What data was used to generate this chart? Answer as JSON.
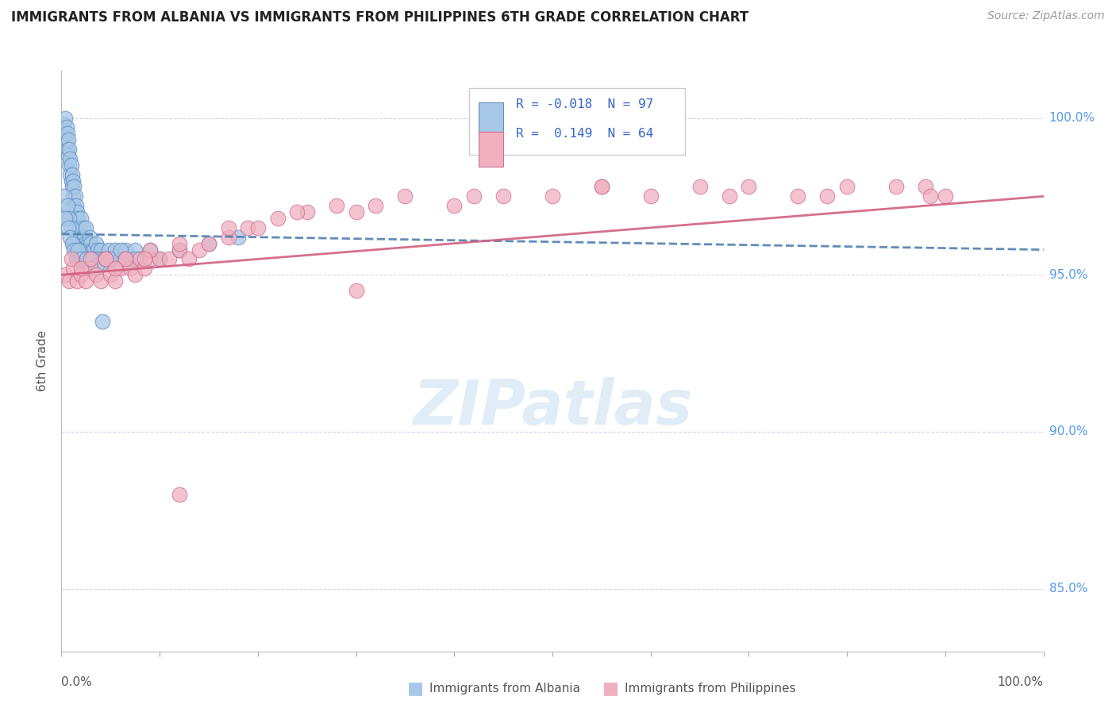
{
  "title": "IMMIGRANTS FROM ALBANIA VS IMMIGRANTS FROM PHILIPPINES 6TH GRADE CORRELATION CHART",
  "source": "Source: ZipAtlas.com",
  "ylabel": "6th Grade",
  "xlim": [
    0.0,
    100.0
  ],
  "ylim": [
    83.0,
    101.5
  ],
  "yticks_right": [
    85.0,
    90.0,
    95.0,
    100.0
  ],
  "albania_color": "#a8c8e8",
  "albania_edge": "#6090c0",
  "albania_line_color": "#5080b0",
  "philippines_color": "#f0b0c0",
  "philippines_edge": "#d07090",
  "philippines_line_color": "#d06080",
  "albania_R": -0.018,
  "albania_N": 97,
  "philippines_R": 0.149,
  "philippines_N": 64,
  "legend_R_color": "#3366cc",
  "background_color": "#ffffff",
  "grid_color": "#ddd0e8",
  "watermark_color": "#cce0f0",
  "albania_x": [
    0.2,
    0.3,
    0.4,
    0.5,
    0.5,
    0.6,
    0.6,
    0.7,
    0.7,
    0.8,
    0.8,
    0.9,
    0.9,
    1.0,
    1.0,
    1.1,
    1.1,
    1.2,
    1.2,
    1.3,
    1.3,
    1.4,
    1.4,
    1.5,
    1.5,
    1.6,
    1.7,
    1.8,
    1.9,
    2.0,
    2.0,
    2.1,
    2.2,
    2.3,
    2.4,
    2.5,
    2.6,
    2.7,
    2.8,
    2.9,
    3.0,
    3.1,
    3.2,
    3.3,
    3.4,
    3.5,
    3.7,
    3.9,
    4.0,
    4.2,
    4.5,
    4.8,
    5.0,
    5.5,
    6.0,
    6.5,
    7.0,
    7.5,
    8.0,
    9.0,
    10.0,
    12.0,
    15.0,
    18.0,
    0.3,
    0.5,
    0.6,
    0.8,
    1.0,
    1.2,
    1.4,
    1.6,
    1.8,
    2.0,
    2.2,
    2.5,
    2.8,
    3.0,
    3.5,
    4.0,
    4.5,
    5.0,
    6.0,
    7.5,
    0.4,
    0.7,
    0.9,
    1.1,
    1.3,
    1.5,
    1.7,
    2.0,
    2.3,
    2.6,
    3.1,
    3.6,
    4.2
  ],
  "albania_y": [
    99.8,
    99.5,
    100.0,
    99.7,
    99.2,
    99.0,
    99.5,
    98.8,
    99.3,
    98.5,
    99.0,
    98.2,
    98.7,
    98.0,
    98.5,
    97.8,
    98.2,
    97.5,
    98.0,
    97.2,
    97.8,
    97.0,
    97.5,
    96.8,
    97.2,
    97.0,
    96.8,
    96.5,
    96.5,
    96.3,
    96.8,
    96.0,
    96.5,
    96.2,
    96.0,
    96.5,
    95.8,
    96.0,
    95.8,
    96.2,
    96.0,
    95.8,
    95.5,
    95.8,
    95.5,
    96.0,
    95.8,
    95.5,
    95.8,
    95.5,
    95.5,
    95.8,
    95.5,
    95.8,
    95.5,
    95.8,
    95.5,
    95.8,
    95.5,
    95.8,
    95.5,
    95.8,
    96.0,
    96.2,
    97.5,
    97.0,
    97.2,
    96.8,
    96.5,
    96.0,
    95.8,
    95.5,
    95.8,
    95.5,
    95.3,
    95.5,
    95.2,
    95.5,
    95.5,
    95.3,
    95.5,
    95.5,
    95.8,
    95.5,
    96.8,
    96.5,
    96.2,
    96.0,
    95.8,
    95.5,
    95.8,
    95.5,
    95.3,
    95.5,
    95.5,
    95.3,
    93.5
  ],
  "philippines_x": [
    0.4,
    0.8,
    1.2,
    1.6,
    2.0,
    2.5,
    3.0,
    3.5,
    4.0,
    4.5,
    5.0,
    5.5,
    6.0,
    6.5,
    7.0,
    7.5,
    8.0,
    8.5,
    9.0,
    10.0,
    11.0,
    12.0,
    13.0,
    14.0,
    15.0,
    17.0,
    19.0,
    22.0,
    25.0,
    28.0,
    30.0,
    35.0,
    40.0,
    45.0,
    50.0,
    55.0,
    60.0,
    65.0,
    70.0,
    75.0,
    80.0,
    85.0,
    90.0,
    1.0,
    2.0,
    3.0,
    4.5,
    6.5,
    9.0,
    12.0,
    17.0,
    24.0,
    32.0,
    42.0,
    55.0,
    68.0,
    78.0,
    88.0,
    30.0,
    5.5,
    8.5,
    20.0,
    12.0,
    88.5
  ],
  "philippines_y": [
    95.0,
    94.8,
    95.2,
    94.8,
    95.0,
    94.8,
    95.2,
    95.0,
    94.8,
    95.5,
    95.0,
    94.8,
    95.2,
    95.5,
    95.2,
    95.0,
    95.5,
    95.2,
    95.5,
    95.5,
    95.5,
    95.8,
    95.5,
    95.8,
    96.0,
    96.2,
    96.5,
    96.8,
    97.0,
    97.2,
    97.0,
    97.5,
    97.2,
    97.5,
    97.5,
    97.8,
    97.5,
    97.8,
    97.8,
    97.5,
    97.8,
    97.8,
    97.5,
    95.5,
    95.2,
    95.5,
    95.5,
    95.5,
    95.8,
    96.0,
    96.5,
    97.0,
    97.2,
    97.5,
    97.8,
    97.5,
    97.5,
    97.8,
    94.5,
    95.2,
    95.5,
    96.5,
    88.0,
    97.5
  ]
}
